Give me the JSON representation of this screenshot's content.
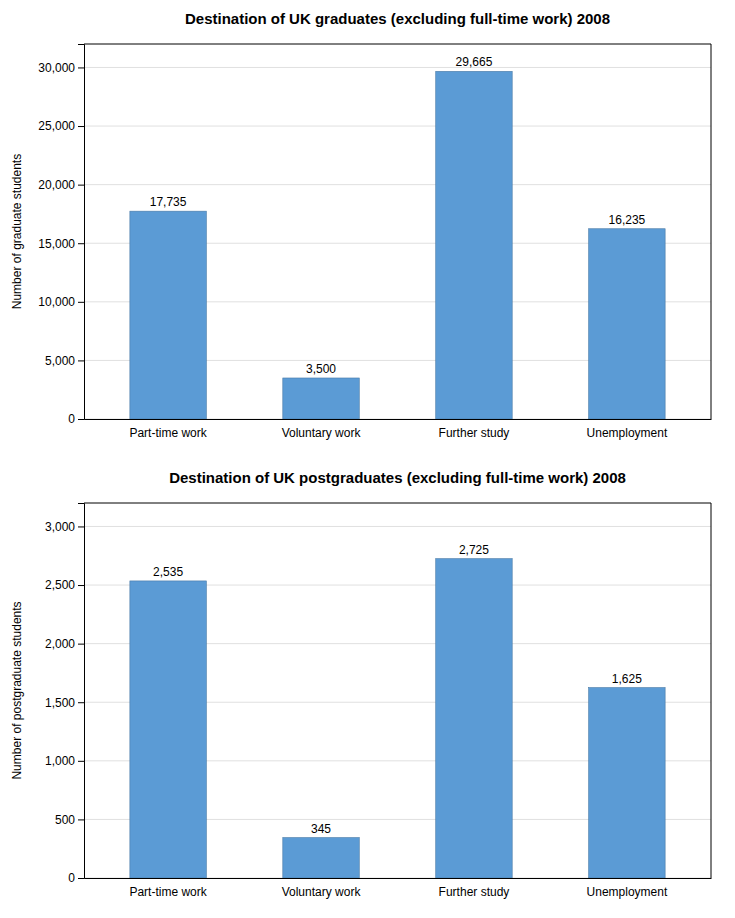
{
  "chart_data": [
    {
      "type": "bar",
      "title": "Destination of UK graduates (excluding full-time work) 2008",
      "categories": [
        "Part-time work",
        "Voluntary work",
        "Further study",
        "Unemployment"
      ],
      "values": [
        17735,
        3500,
        29665,
        16235
      ],
      "value_labels": [
        "17,735",
        "3,500",
        "29,665",
        "16,235"
      ],
      "ylabel": "Number of graduate students",
      "color": "#5B9BD5",
      "ylim": [
        0,
        32000
      ],
      "yticks": [
        0,
        {
          "value": 5000,
          "label": "5,000"
        },
        {
          "value": 10000,
          "label": "10,000"
        },
        {
          "value": 15000,
          "label": "15,000"
        },
        {
          "value": 20000,
          "label": "20,000"
        },
        {
          "value": 25000,
          "label": "25,000"
        },
        {
          "value": 30000,
          "label": "30,000"
        }
      ],
      "grid": true,
      "data_labels": true
    },
    {
      "type": "bar",
      "title": "Destination of UK postgraduates (excluding full-time work) 2008",
      "categories": [
        "Part-time work",
        "Voluntary work",
        "Further study",
        "Unemployment"
      ],
      "values": [
        2535,
        345,
        2725,
        1625
      ],
      "value_labels": [
        "2,535",
        "345",
        "2,725",
        "1,625"
      ],
      "ylabel": "Number of postgraduate students",
      "color": "#5B9BD5",
      "ylim": [
        0,
        3200
      ],
      "yticks": [
        0,
        500,
        {
          "value": 1000,
          "label": "1,000"
        },
        {
          "value": 1500,
          "label": "1,500"
        },
        {
          "value": 2000,
          "label": "2,000"
        },
        {
          "value": 2500,
          "label": "2,500"
        },
        {
          "value": 3000,
          "label": "3,000"
        }
      ],
      "grid": true,
      "data_labels": true
    }
  ]
}
